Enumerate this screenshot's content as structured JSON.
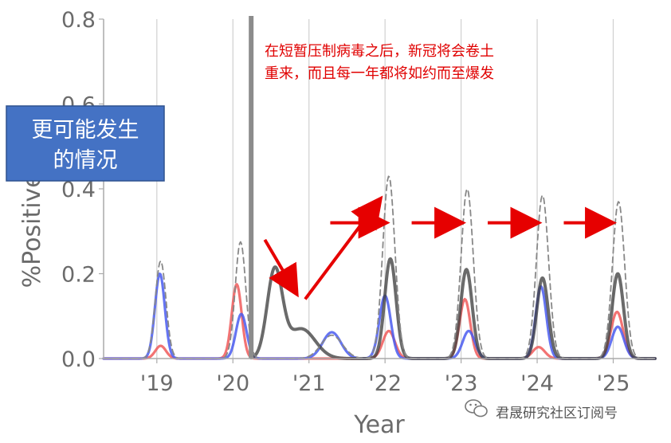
{
  "chart_data": {
    "type": "line",
    "xlabel": "Year",
    "ylabel": "%Positive × ILI",
    "ylim": [
      0,
      0.8
    ],
    "xlim": [
      2018.3,
      2025.55
    ],
    "y_ticks": [
      "0.0",
      "0.2",
      "0.4",
      "0.6",
      "0.8"
    ],
    "x_ticks": [
      {
        "label": "'19",
        "x": 2019
      },
      {
        "label": "'20",
        "x": 2020
      },
      {
        "label": "'21",
        "x": 2021
      },
      {
        "label": "'22",
        "x": 2022
      },
      {
        "label": "'23",
        "x": 2023
      },
      {
        "label": "'24",
        "x": 2024
      },
      {
        "label": "'25",
        "x": 2025
      }
    ],
    "intervention_line_x": 2020.24,
    "series": [
      {
        "name": "total",
        "color": "#888888",
        "dashed": true,
        "peaks": [
          [
            2019.05,
            0.23,
            0.07
          ],
          [
            2020.1,
            0.275,
            0.07
          ],
          [
            2021.3,
            0.055,
            0.14
          ],
          [
            2022.05,
            0.43,
            0.08
          ],
          [
            2023.08,
            0.4,
            0.08
          ],
          [
            2024.07,
            0.385,
            0.08
          ],
          [
            2025.07,
            0.37,
            0.08
          ]
        ]
      },
      {
        "name": "blue",
        "color": "#4a5cf0",
        "dashed": false,
        "peaks": [
          [
            2019.04,
            0.2,
            0.065
          ],
          [
            2020.11,
            0.105,
            0.07
          ],
          [
            2021.3,
            0.062,
            0.12
          ],
          [
            2022.0,
            0.148,
            0.075
          ],
          [
            2023.1,
            0.065,
            0.08
          ],
          [
            2024.05,
            0.17,
            0.07
          ],
          [
            2025.06,
            0.075,
            0.08
          ]
        ]
      },
      {
        "name": "red",
        "color": "#f05a5a",
        "dashed": false,
        "peaks": [
          [
            2019.05,
            0.03,
            0.07
          ],
          [
            2020.05,
            0.175,
            0.065
          ],
          [
            2022.05,
            0.065,
            0.08
          ],
          [
            2023.05,
            0.14,
            0.07
          ],
          [
            2024.02,
            0.027,
            0.08
          ],
          [
            2025.05,
            0.11,
            0.08
          ]
        ]
      },
      {
        "name": "black",
        "color": "#404040",
        "dashed": false,
        "x_start": 2020.24,
        "peaks": [
          [
            2020.55,
            0.205,
            0.1
          ],
          [
            2020.9,
            0.07,
            0.18
          ],
          [
            2022.07,
            0.235,
            0.075
          ],
          [
            2023.07,
            0.21,
            0.075
          ],
          [
            2024.07,
            0.19,
            0.075
          ],
          [
            2025.06,
            0.2,
            0.075
          ]
        ]
      }
    ]
  },
  "annotation": {
    "line1": "在短暂压制病毒之后，新冠将会卷土",
    "line2": "重来，而且每一年都将如约而至爆发"
  },
  "label_box": {
    "line1": "更可能发生",
    "line2": "的情况"
  },
  "arrows": [
    {
      "from": [
        2020.42,
        0.28
      ],
      "to": [
        2020.78,
        0.17
      ]
    },
    {
      "from": [
        2020.95,
        0.14
      ],
      "to": [
        2021.87,
        0.36
      ]
    },
    {
      "from": [
        2021.28,
        0.32
      ],
      "to": [
        2021.9,
        0.32
      ]
    },
    {
      "from": [
        2022.35,
        0.32
      ],
      "to": [
        2022.9,
        0.32
      ]
    },
    {
      "from": [
        2023.35,
        0.32
      ],
      "to": [
        2023.9,
        0.32
      ]
    },
    {
      "from": [
        2024.35,
        0.32
      ],
      "to": [
        2024.88,
        0.32
      ]
    }
  ],
  "watermark": "君晟研究社区订阅号"
}
